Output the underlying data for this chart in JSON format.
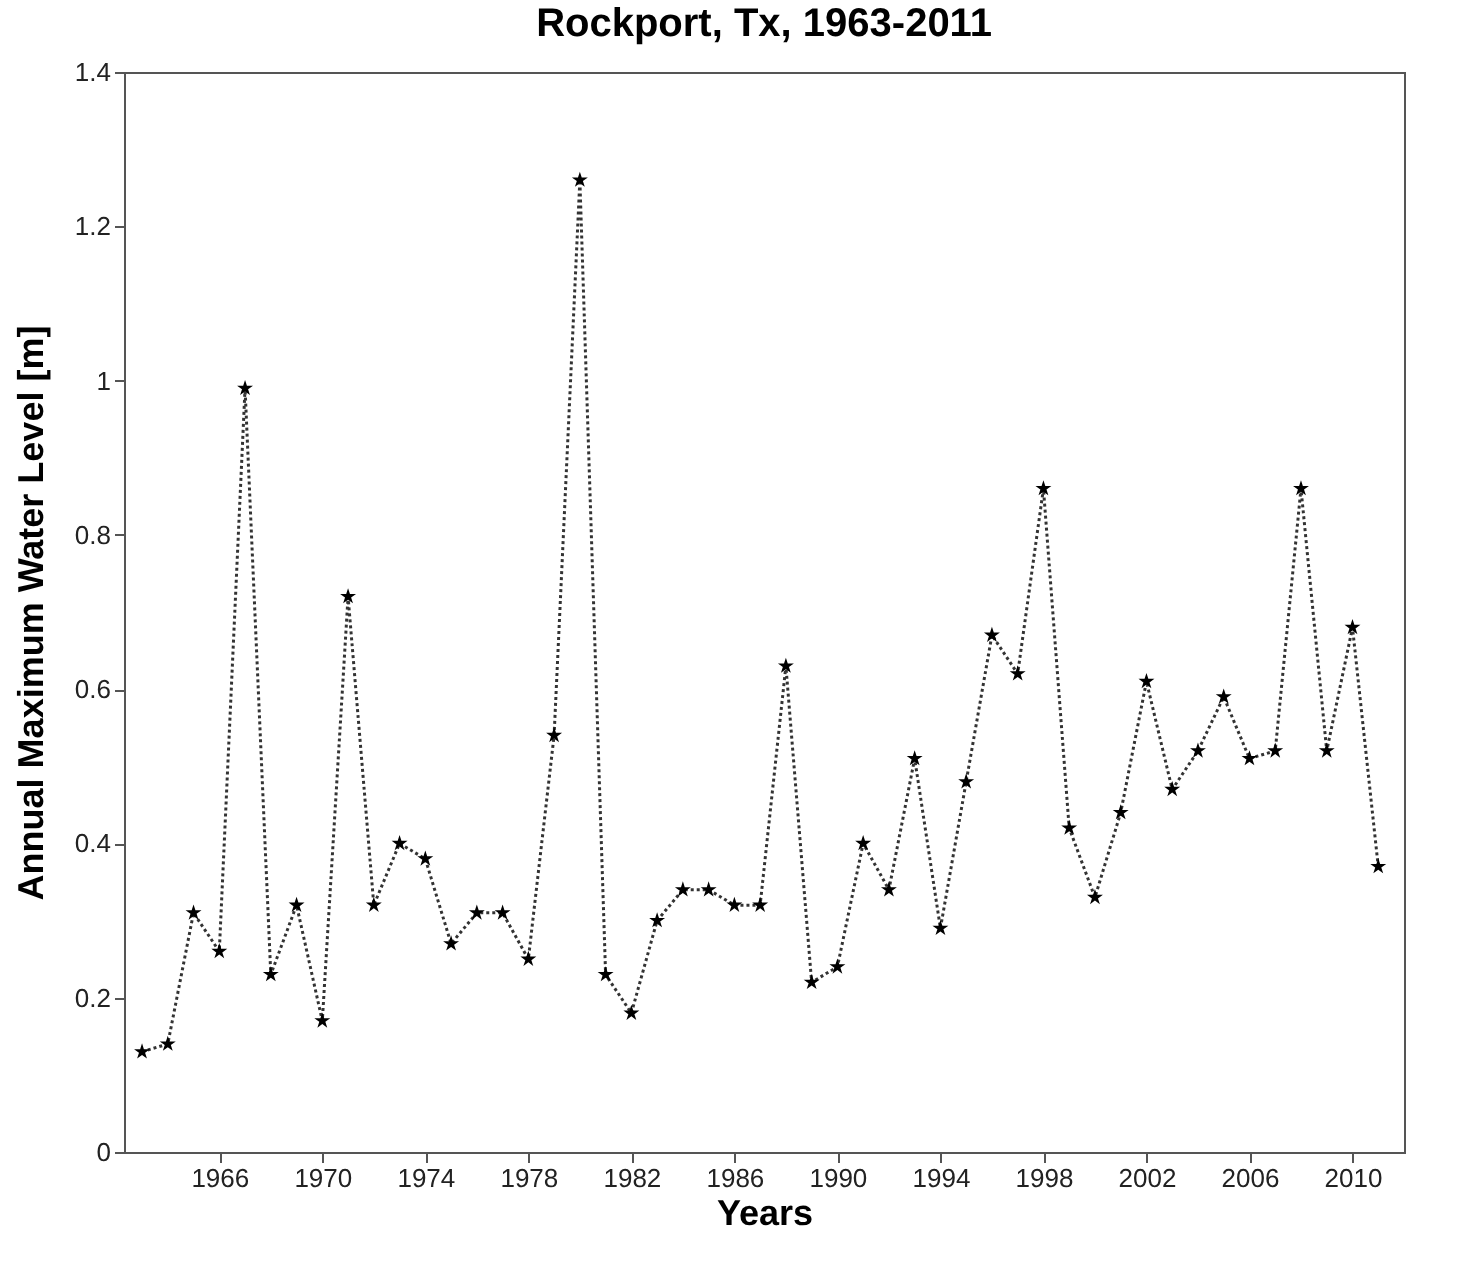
{
  "chart_data": {
    "type": "line",
    "title": "Rockport, Tx, 1963-2011",
    "xlabel": "Years",
    "ylabel": "Annual Maximum Water Level [m]",
    "x": [
      1963,
      1964,
      1965,
      1966,
      1967,
      1968,
      1969,
      1970,
      1971,
      1972,
      1973,
      1974,
      1975,
      1976,
      1977,
      1978,
      1979,
      1980,
      1981,
      1982,
      1983,
      1984,
      1985,
      1986,
      1987,
      1988,
      1989,
      1990,
      1991,
      1992,
      1993,
      1994,
      1995,
      1996,
      1997,
      1998,
      1999,
      2000,
      2001,
      2002,
      2003,
      2004,
      2005,
      2006,
      2007,
      2008,
      2009,
      2010,
      2011
    ],
    "series": [
      {
        "color": "#000000",
        "values": [
          0.13,
          0.14,
          0.31,
          0.26,
          0.99,
          0.23,
          0.32,
          0.17,
          0.72,
          0.32,
          0.4,
          0.38,
          0.27,
          0.31,
          0.31,
          0.25,
          0.54,
          1.26,
          0.23,
          0.18,
          0.3,
          0.34,
          0.34,
          0.32,
          0.32,
          0.63,
          0.22,
          0.24,
          0.4,
          0.34,
          0.51,
          0.29,
          0.48,
          0.67,
          0.62,
          0.86,
          0.42,
          0.33,
          0.44,
          0.61,
          0.47,
          0.52,
          0.59,
          0.51,
          0.52,
          0.86,
          0.52,
          0.68,
          0.37
        ]
      }
    ],
    "xlim": [
      1962.3,
      2012
    ],
    "xticks": [
      1966,
      1970,
      1974,
      1978,
      1982,
      1986,
      1990,
      1994,
      1998,
      2002,
      2006,
      2010
    ],
    "ylim": [
      0,
      1.4
    ],
    "yticks": [
      0,
      0.2,
      0.4,
      0.6,
      0.8,
      1,
      1.2,
      1.4
    ],
    "marker": "star",
    "line_style": "dotted"
  }
}
